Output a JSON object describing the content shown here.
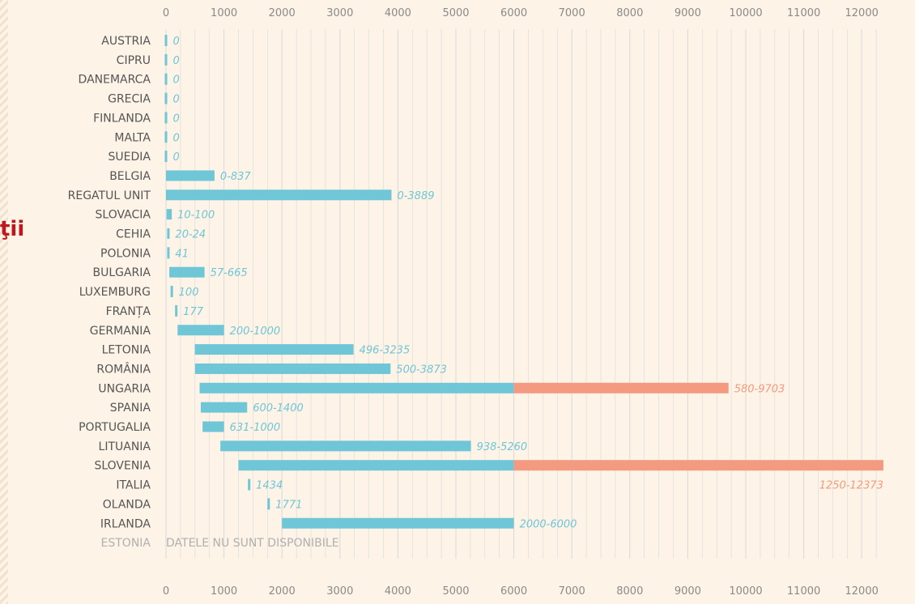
{
  "side_text": "ţii",
  "colors": {
    "primary": "#6fc6d6",
    "secondary": "#f39a80",
    "grid": "#d9d9d9",
    "background": "#fdf3e6"
  },
  "chart_data": {
    "type": "bar",
    "orientation": "horizontal",
    "xlim": [
      0,
      12500
    ],
    "x_ticks": [
      0,
      1000,
      2000,
      3000,
      4000,
      5000,
      6000,
      7000,
      8000,
      9000,
      10000,
      11000,
      12000
    ],
    "x_tick_labels": [
      "0",
      "1000",
      "2000",
      "3000",
      "4000",
      "5000",
      "6000",
      "7000",
      "8000",
      "9000",
      "10000",
      "11000",
      "12000"
    ],
    "grid": true,
    "axis_labels_position": "top and bottom",
    "bars": [
      {
        "category": "AUSTRIA",
        "min": 0,
        "max": 0,
        "label": "0"
      },
      {
        "category": "CIPRU",
        "min": 0,
        "max": 0,
        "label": "0"
      },
      {
        "category": "DANEMARCA",
        "min": 0,
        "max": 0,
        "label": "0"
      },
      {
        "category": "GRECIA",
        "min": 0,
        "max": 0,
        "label": "0"
      },
      {
        "category": "FINLANDA",
        "min": 0,
        "max": 0,
        "label": "0"
      },
      {
        "category": "MALTA",
        "min": 0,
        "max": 0,
        "label": "0"
      },
      {
        "category": "SUEDIA",
        "min": 0,
        "max": 0,
        "label": "0"
      },
      {
        "category": "BELGIA",
        "min": 0,
        "max": 837,
        "label": "0-837"
      },
      {
        "category": "REGATUL UNIT",
        "min": 0,
        "max": 3889,
        "label": "0-3889"
      },
      {
        "category": "SLOVACIA",
        "min": 10,
        "max": 100,
        "label": "10-100"
      },
      {
        "category": "CEHIA",
        "min": 20,
        "max": 24,
        "label": "20-24"
      },
      {
        "category": "POLONIA",
        "min": 41,
        "max": 41,
        "label": "41"
      },
      {
        "category": "BULGARIA",
        "min": 57,
        "max": 665,
        "label": "57-665"
      },
      {
        "category": "LUXEMBURG",
        "min": 100,
        "max": 100,
        "label": "100"
      },
      {
        "category": "FRANȚA",
        "min": 177,
        "max": 177,
        "label": "177"
      },
      {
        "category": "GERMANIA",
        "min": 200,
        "max": 1000,
        "label": "200-1000"
      },
      {
        "category": "LETONIA",
        "min": 496,
        "max": 3235,
        "label": "496-3235"
      },
      {
        "category": "ROMÂNIA",
        "min": 500,
        "max": 3873,
        "label": "500-3873"
      },
      {
        "category": "UNGARIA",
        "min": 580,
        "max": 9703,
        "label": "580-9703",
        "break_at": 6000
      },
      {
        "category": "SPANIA",
        "min": 600,
        "max": 1400,
        "label": "600-1400"
      },
      {
        "category": "PORTUGALIA",
        "min": 631,
        "max": 1000,
        "label": "631-1000"
      },
      {
        "category": "LITUANIA",
        "min": 938,
        "max": 5260,
        "label": "938-5260"
      },
      {
        "category": "SLOVENIA",
        "min": 1250,
        "max": 12373,
        "label": "1250-12373",
        "break_at": 6000
      },
      {
        "category": "ITALIA",
        "min": 1434,
        "max": 1434,
        "label": "1434"
      },
      {
        "category": "OLANDA",
        "min": 1771,
        "max": 1771,
        "label": "1771"
      },
      {
        "category": "IRLANDA",
        "min": 2000,
        "max": 6000,
        "label": "2000-6000"
      },
      {
        "category": "ESTONIA",
        "min": null,
        "max": null,
        "label": "DATELE NU SUNT DISPONIBILE"
      }
    ]
  }
}
